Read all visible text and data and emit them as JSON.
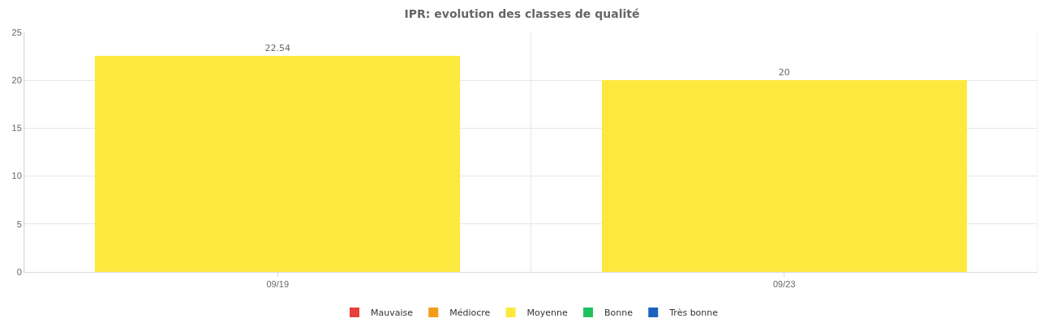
{
  "chart_data": {
    "type": "bar",
    "title": "IPR: evolution des classes de qualité",
    "categories": [
      "09/19",
      "09/23"
    ],
    "stacked": true,
    "series": [
      {
        "name": "Mauvaise",
        "color": "#e8403a",
        "values": [
          null,
          null
        ]
      },
      {
        "name": "Médiocre",
        "color": "#f39c1b",
        "values": [
          null,
          null
        ]
      },
      {
        "name": "Moyenne",
        "color": "#fde93e",
        "values": [
          22.54,
          20
        ]
      },
      {
        "name": "Bonne",
        "color": "#1ec25d",
        "values": [
          null,
          null
        ]
      },
      {
        "name": "Très bonne",
        "color": "#1b63c0",
        "values": [
          null,
          null
        ]
      }
    ],
    "ylim": [
      0,
      25
    ],
    "yticks": [
      0,
      5,
      10,
      15,
      20,
      25
    ],
    "grid": true,
    "legend": "bottom",
    "data_labels": true
  }
}
